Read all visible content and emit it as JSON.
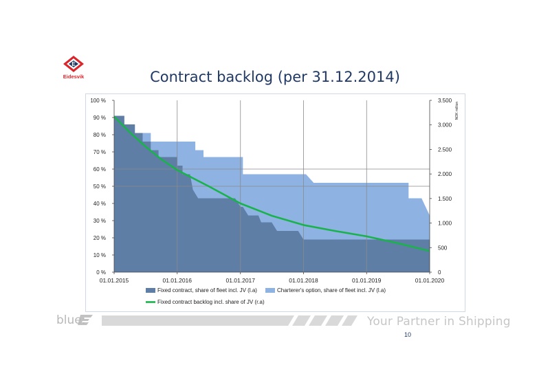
{
  "page": {
    "title": "Contract backlog (per 31.12.2014)",
    "logo_text": "Eidesvik",
    "logo_letter": "E",
    "footer_brand": "blue:",
    "footer_brand_mark": "E",
    "footer_tagline": "Your Partner in Shipping",
    "page_number": "10",
    "colors": {
      "title": "#1f3864",
      "fixed_area": "#5f7ea6",
      "option_area": "#8eb3e3",
      "backlog_line": "#19b24b",
      "logo_red": "#d9262c",
      "logo_navy": "#1f3864"
    }
  },
  "chart_data": {
    "type": "area",
    "x_ticks": [
      "01.01.2015",
      "01.01.2016",
      "01.01.2017",
      "01.01.2018",
      "01.01.2019",
      "01.01.2020"
    ],
    "x_range": [
      "01.01.2015",
      "01.01.2020"
    ],
    "y_left": {
      "ylim": [
        0,
        100
      ],
      "ticks": [
        0,
        10,
        20,
        30,
        40,
        50,
        60,
        70,
        80,
        90,
        100
      ],
      "tick_labels": [
        "0 %",
        "10 %",
        "20 %",
        "30 %",
        "40 %",
        "50 %",
        "60 %",
        "70 %",
        "80 %",
        "90 %",
        "100 %"
      ]
    },
    "y_right": {
      "label": "NOK million",
      "ylim": [
        0,
        3500
      ],
      "ticks": [
        0,
        500,
        1000,
        1500,
        2000,
        2500,
        3000,
        3500
      ],
      "tick_labels": [
        "0",
        "500",
        "1.000",
        "1.500",
        "2.000",
        "2.500",
        "3.000",
        "3.500"
      ]
    },
    "grid": "vertical at year ticks, horizontal at 50% and 60%",
    "legend_position": "bottom",
    "series": [
      {
        "name": "Fixed contract, share of fleet incl. JV (l.a)",
        "kind": "area",
        "axis": "left",
        "color": "#5f7ea6",
        "points": [
          {
            "x": "2015-01-01",
            "y": 91
          },
          {
            "x": "2015-03-01",
            "y": 91
          },
          {
            "x": "2015-03-01",
            "y": 86
          },
          {
            "x": "2015-05-01",
            "y": 86
          },
          {
            "x": "2015-05-01",
            "y": 81
          },
          {
            "x": "2015-06-15",
            "y": 81
          },
          {
            "x": "2015-06-15",
            "y": 76
          },
          {
            "x": "2015-08-01",
            "y": 76
          },
          {
            "x": "2015-08-01",
            "y": 71
          },
          {
            "x": "2015-09-15",
            "y": 71
          },
          {
            "x": "2015-09-15",
            "y": 67
          },
          {
            "x": "2016-01-01",
            "y": 67
          },
          {
            "x": "2016-01-01",
            "y": 62
          },
          {
            "x": "2016-02-01",
            "y": 62
          },
          {
            "x": "2016-02-01",
            "y": 57
          },
          {
            "x": "2016-03-15",
            "y": 57
          },
          {
            "x": "2016-04-01",
            "y": 48
          },
          {
            "x": "2016-05-01",
            "y": 43
          },
          {
            "x": "2016-12-01",
            "y": 43
          },
          {
            "x": "2017-01-01",
            "y": 38
          },
          {
            "x": "2017-01-15",
            "y": 38
          },
          {
            "x": "2017-02-15",
            "y": 33
          },
          {
            "x": "2017-04-15",
            "y": 33
          },
          {
            "x": "2017-05-01",
            "y": 29
          },
          {
            "x": "2017-07-01",
            "y": 29
          },
          {
            "x": "2017-08-01",
            "y": 24
          },
          {
            "x": "2017-12-01",
            "y": 24
          },
          {
            "x": "2018-01-01",
            "y": 19
          },
          {
            "x": "2020-01-01",
            "y": 19
          }
        ]
      },
      {
        "name": "Charterer's option, share of fleet incl. JV (l.a)",
        "kind": "area",
        "axis": "left",
        "color": "#8eb3e3",
        "points": [
          {
            "x": "2015-01-01",
            "y": 91
          },
          {
            "x": "2015-03-01",
            "y": 91
          },
          {
            "x": "2015-03-01",
            "y": 86
          },
          {
            "x": "2015-05-01",
            "y": 86
          },
          {
            "x": "2015-05-01",
            "y": 81
          },
          {
            "x": "2015-08-01",
            "y": 81
          },
          {
            "x": "2015-08-01",
            "y": 76
          },
          {
            "x": "2016-04-15",
            "y": 76
          },
          {
            "x": "2016-04-15",
            "y": 71
          },
          {
            "x": "2016-06-01",
            "y": 71
          },
          {
            "x": "2016-06-01",
            "y": 67
          },
          {
            "x": "2017-01-15",
            "y": 67
          },
          {
            "x": "2017-01-15",
            "y": 57
          },
          {
            "x": "2018-01-15",
            "y": 57
          },
          {
            "x": "2018-03-01",
            "y": 52
          },
          {
            "x": "2019-09-01",
            "y": 52
          },
          {
            "x": "2019-09-01",
            "y": 43
          },
          {
            "x": "2019-11-15",
            "y": 43
          },
          {
            "x": "2020-01-01",
            "y": 33
          }
        ]
      },
      {
        "name": "Fixed contract backlog incl. share of JV (r.a)",
        "kind": "line",
        "axis": "right",
        "color": "#19b24b",
        "points": [
          {
            "x": "2015-01-01",
            "y": 3170
          },
          {
            "x": "2015-04-01",
            "y": 2850
          },
          {
            "x": "2015-07-01",
            "y": 2560
          },
          {
            "x": "2015-10-01",
            "y": 2300
          },
          {
            "x": "2016-01-01",
            "y": 2080
          },
          {
            "x": "2016-07-01",
            "y": 1750
          },
          {
            "x": "2017-01-01",
            "y": 1400
          },
          {
            "x": "2017-07-01",
            "y": 1150
          },
          {
            "x": "2018-01-01",
            "y": 960
          },
          {
            "x": "2018-07-01",
            "y": 840
          },
          {
            "x": "2019-01-01",
            "y": 730
          },
          {
            "x": "2019-07-01",
            "y": 590
          },
          {
            "x": "2020-01-01",
            "y": 430
          }
        ]
      }
    ]
  }
}
